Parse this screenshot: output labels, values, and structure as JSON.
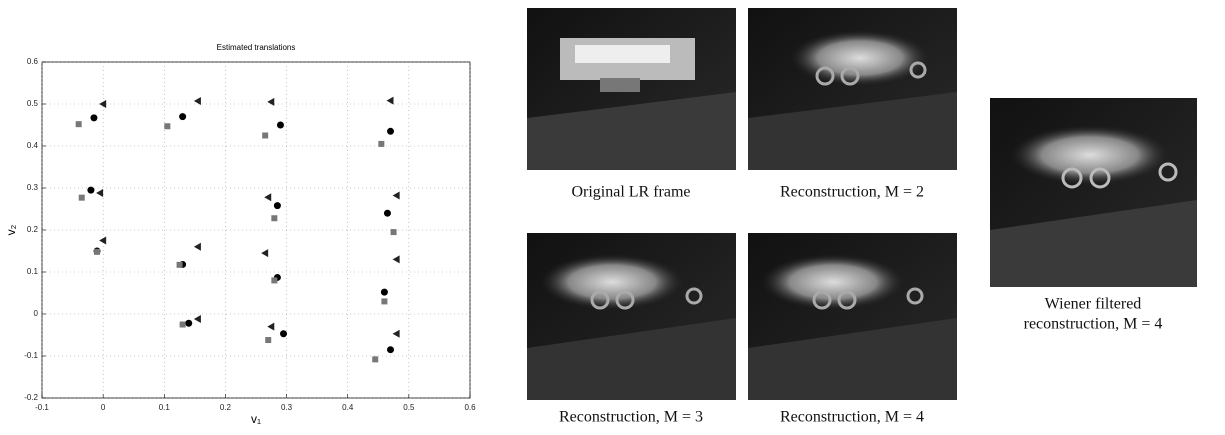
{
  "chart_data": {
    "type": "scatter",
    "title": "Estimated translations",
    "x_label": "v₁",
    "y_label": "v₂",
    "xlim": [
      -0.1,
      0.6
    ],
    "ylim": [
      -0.2,
      0.6
    ],
    "xticks": [
      -0.1,
      0,
      0.1,
      0.2,
      0.3,
      0.4,
      0.5,
      0.6
    ],
    "yticks": [
      -0.2,
      -0.1,
      0,
      0.1,
      0.2,
      0.3,
      0.4,
      0.5,
      0.6
    ],
    "grid": true,
    "series": [
      {
        "marker": "circle",
        "color": "#000000",
        "x": [
          -0.015,
          0.13,
          0.29,
          0.47,
          -0.02,
          0.285,
          0.465,
          -0.01,
          0.13,
          0.285,
          0.46,
          0.14,
          0.295,
          0.47
        ],
        "values": [
          0.467,
          0.47,
          0.45,
          0.435,
          0.295,
          0.258,
          0.24,
          0.15,
          0.118,
          0.087,
          0.052,
          -0.022,
          -0.047,
          -0.085
        ]
      },
      {
        "marker": "square",
        "color": "#777777",
        "x": [
          -0.04,
          0.105,
          0.265,
          0.455,
          -0.035,
          0.28,
          0.475,
          -0.01,
          0.125,
          0.28,
          0.46,
          0.13,
          0.27,
          0.445
        ],
        "values": [
          0.452,
          0.447,
          0.425,
          0.405,
          0.277,
          0.228,
          0.195,
          0.148,
          0.117,
          0.08,
          0.03,
          -0.025,
          -0.062,
          -0.108
        ]
      },
      {
        "marker": "triangle-left",
        "color": "#222222",
        "x": [
          0.0,
          0.155,
          0.275,
          0.47,
          -0.005,
          0.27,
          0.48,
          0.0,
          0.155,
          0.265,
          0.48,
          0.155,
          0.275,
          0.48
        ],
        "values": [
          0.5,
          0.507,
          0.505,
          0.508,
          0.288,
          0.278,
          0.282,
          0.175,
          0.16,
          0.145,
          0.13,
          -0.012,
          -0.03,
          -0.047
        ]
      }
    ]
  },
  "panels": [
    {
      "caption": "Original LR  frame"
    },
    {
      "caption": "Reconstruction, M = 2"
    },
    {
      "caption": "Reconstruction, M = 3"
    },
    {
      "caption": "Reconstruction, M = 4"
    },
    {
      "caption_lines": [
        "Wiener  filtered",
        "reconstruction, M = 4"
      ]
    }
  ]
}
